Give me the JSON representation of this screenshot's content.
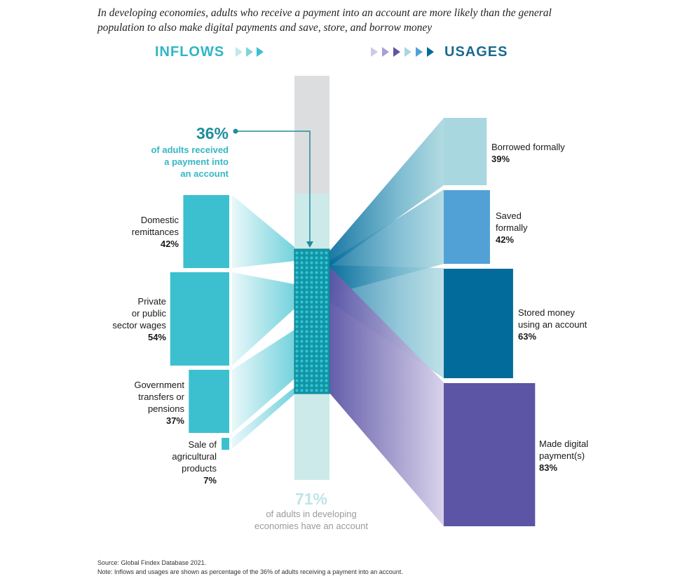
{
  "subtitle": {
    "line1": "In developing economies, adults who receive a payment into an account are more likely than the general",
    "line2": "population to also make digital payments and save, store, and borrow money"
  },
  "inflows_heading": "INFLOWS",
  "usages_heading": "USAGES",
  "callout": {
    "percent": "36%",
    "line1": "of adults received",
    "line2": "a payment into",
    "line3": "an account"
  },
  "bottom": {
    "percent": "71%",
    "line1": "of adults in developing",
    "line2": "economies have an account"
  },
  "inflows": [
    {
      "lines": [
        "Domestic",
        "remittances"
      ],
      "percent": "42%",
      "value": 42
    },
    {
      "lines": [
        "Private",
        "or public",
        "sector wages"
      ],
      "percent": "54%",
      "value": 54
    },
    {
      "lines": [
        "Government",
        "transfers or",
        "pensions"
      ],
      "percent": "37%",
      "value": 37
    },
    {
      "lines": [
        "Sale of",
        "agricultural",
        "products"
      ],
      "percent": "7%",
      "value": 7
    }
  ],
  "usages": [
    {
      "lines": [
        "Borrowed formally"
      ],
      "percent": "39%",
      "value": 39
    },
    {
      "lines": [
        "Saved",
        "formally"
      ],
      "percent": "42%",
      "value": 42
    },
    {
      "lines": [
        "Stored money",
        "using an account"
      ],
      "percent": "63%",
      "value": 63
    },
    {
      "lines": [
        "Made digital",
        "payment(s)"
      ],
      "percent": "83%",
      "value": 83
    }
  ],
  "colors": {
    "inflow": "#3cc0cf",
    "borrowed": "#a9d7df",
    "saved": "#52a1d6",
    "stored": "#026b9b",
    "digital": "#5c55a6",
    "bar_gray": "#dcdddf",
    "bar_light": "#cceae9",
    "mesh": "#1aa9b9"
  },
  "source": "Source: Global Findex Database 2021.",
  "note": "Note: Inflows and usages are shown as percentage of the 36% of adults receiving a payment into an account."
}
